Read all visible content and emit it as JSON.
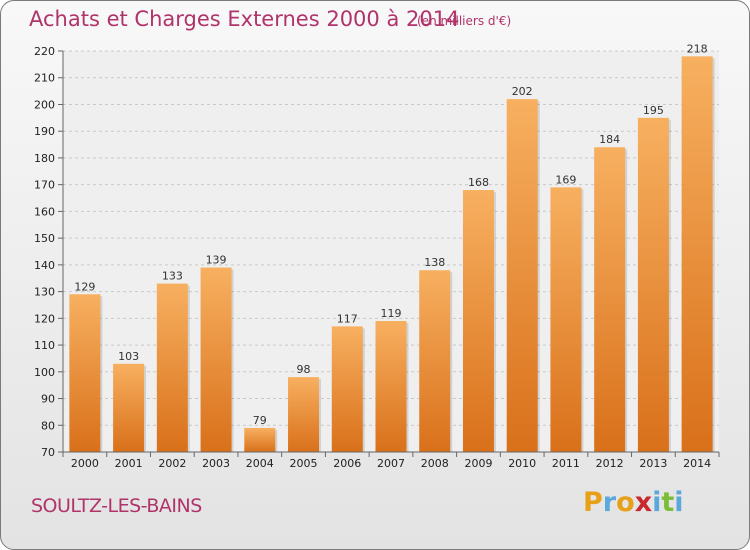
{
  "chart_data": {
    "type": "bar",
    "title": "Achats et Charges Externes 2000 à 2014",
    "subtitle": "(en milliers d'€)",
    "categories": [
      "2000",
      "2001",
      "2002",
      "2003",
      "2004",
      "2005",
      "2006",
      "2007",
      "2008",
      "2009",
      "2010",
      "2011",
      "2012",
      "2013",
      "2014"
    ],
    "values": [
      129,
      103,
      133,
      139,
      79,
      98,
      117,
      119,
      138,
      168,
      202,
      169,
      184,
      195,
      218
    ],
    "ylim": [
      70,
      220
    ],
    "yticks": [
      70,
      80,
      90,
      100,
      110,
      120,
      130,
      140,
      150,
      160,
      170,
      180,
      190,
      200,
      210,
      220
    ],
    "grid": true,
    "bar_color": "#f29a3a",
    "bar_color_light": "#f7b060",
    "bar_color_dark": "#d9701a"
  },
  "footer": {
    "commune": "SOULTZ-LES-BAINS",
    "logo_letters": [
      "P",
      "r",
      "o",
      "x",
      "i",
      "t",
      "i"
    ],
    "logo_colors": [
      "#e8a019",
      "#5aa8dc",
      "#e8a019",
      "#c8282e",
      "#5aa8dc",
      "#7bbd3a",
      "#5aa8dc"
    ]
  }
}
